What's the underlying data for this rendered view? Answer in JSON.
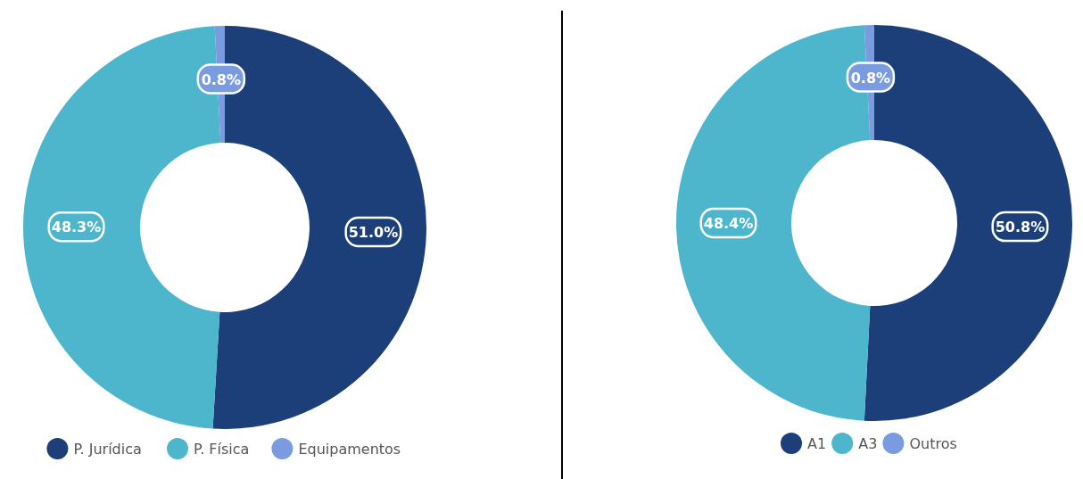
{
  "chart_data": [
    {
      "type": "donut",
      "categories": [
        "P. Jurídica",
        "P. Física",
        "Equipamentos"
      ],
      "values": [
        51.0,
        48.3,
        0.8
      ],
      "colors": [
        "#1c3f7a",
        "#4db6cc",
        "#7b9be0"
      ],
      "value_labels": [
        "51.0%",
        "48.3%",
        "0.8%"
      ],
      "legend": "bottom"
    },
    {
      "type": "donut",
      "categories": [
        "A1",
        "A3",
        "Outros"
      ],
      "values": [
        50.8,
        48.4,
        0.8
      ],
      "colors": [
        "#1c3f7a",
        "#4db6cc",
        "#7b9be0"
      ],
      "value_labels": [
        "50.8%",
        "48.4%",
        "0.8%"
      ],
      "legend": "bottom"
    }
  ]
}
